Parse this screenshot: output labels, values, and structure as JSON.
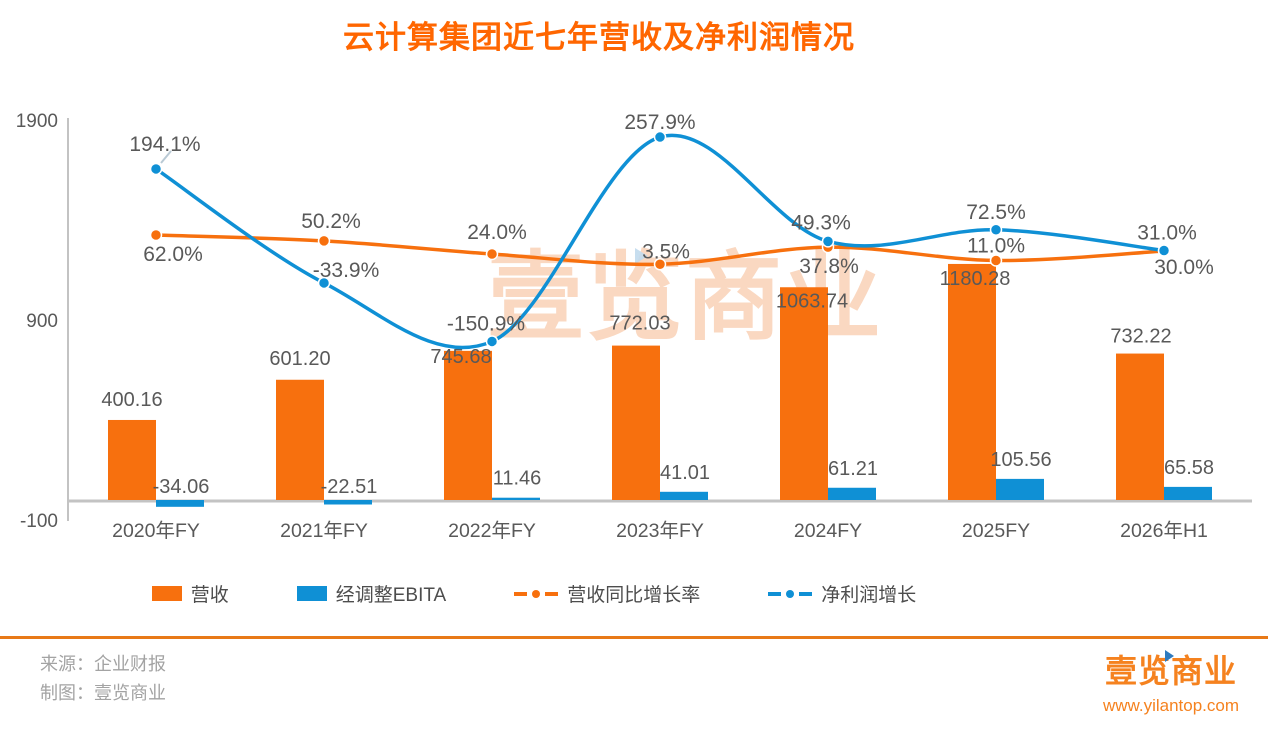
{
  "title": "云计算集团近七年营收及净利润情况",
  "watermark": {
    "text": "壹览商业"
  },
  "colors": {
    "orange": "#f7700e",
    "blue": "#0f90d5",
    "title_orange": "#ff6600",
    "text_gray": "#595959",
    "axis_gray": "#c3c3c3",
    "divider_orange": "#e87917",
    "watermark_orange": "#f6b990",
    "watermark_blue": "#8fbce0",
    "logo_orange": "#f5821f",
    "logo_blue": "#2e7bbf"
  },
  "footer": {
    "source": "来源：企业财报",
    "credit": "制图：壹览商业",
    "logo_text": "壹览商业",
    "website": "www.yilantop.com"
  },
  "chart_data": {
    "type": "bar+line combo",
    "title": "云计算集团近七年营收及净利润情况",
    "categories": [
      "2020年FY",
      "2021年FY",
      "2022年FY",
      "2023年FY",
      "2024FY",
      "2025FY",
      "2026年H1"
    ],
    "y_axis": {
      "min": -100,
      "max": 1900,
      "ticks": [
        1900,
        900,
        -100
      ]
    },
    "grid": "off",
    "legend_position": "bottom",
    "series": [
      {
        "name": "营收",
        "type": "bar",
        "color_key": "orange",
        "values": [
          400.16,
          601.2,
          745.68,
          772.03,
          1063.74,
          1180.28,
          732.22
        ],
        "labels": [
          "400.16",
          "601.20",
          "745.68",
          "772.03",
          "1063.74",
          "1180.28",
          "732.22"
        ],
        "label_offsets": [
          [
            0,
            -6
          ],
          [
            0,
            -7
          ],
          [
            -7,
            20
          ],
          [
            4,
            -8
          ],
          [
            8,
            28
          ],
          [
            3,
            29
          ],
          [
            1,
            -3
          ]
        ]
      },
      {
        "name": "经调整EBITA",
        "type": "bar",
        "color_key": "blue",
        "values": [
          -34.06,
          -22.51,
          11.46,
          41.01,
          61.21,
          105.56,
          65.58
        ],
        "labels": [
          "-34.06",
          "-22.51",
          "11.46",
          "41.01",
          "61.21",
          "105.56",
          "65.58"
        ]
      },
      {
        "name": "营收同比增长率",
        "type": "line",
        "axis": "percent",
        "color_key": "orange",
        "values": [
          62.0,
          50.2,
          24.0,
          3.5,
          37.8,
          11.0,
          30.0
        ],
        "labels": [
          "62.0%",
          "50.2%",
          "24.0%",
          "3.5%",
          "37.8%",
          "11.0%",
          "30.0%"
        ],
        "label_offsets": [
          [
            17,
            26
          ],
          [
            7,
            -13
          ],
          [
            5,
            -15
          ],
          [
            6,
            -6
          ],
          [
            1,
            26
          ],
          [
            0,
            -8
          ],
          [
            20,
            23
          ]
        ]
      },
      {
        "name": "净利润增长",
        "type": "line",
        "axis": "percent",
        "color_key": "blue",
        "values": [
          194.1,
          -33.9,
          -150.9,
          257.9,
          49.3,
          72.5,
          31.0
        ],
        "labels": [
          "194.1%",
          "-33.9%",
          "-150.9%",
          "257.9%",
          "49.3%",
          "72.5%",
          "31.0%"
        ],
        "label_offsets": [
          [
            9,
            -18
          ],
          [
            22,
            -6
          ],
          [
            -6,
            -11
          ],
          [
            0,
            -8
          ],
          [
            -7,
            -12
          ],
          [
            0,
            -11
          ],
          [
            3,
            -11
          ]
        ]
      }
    ]
  }
}
